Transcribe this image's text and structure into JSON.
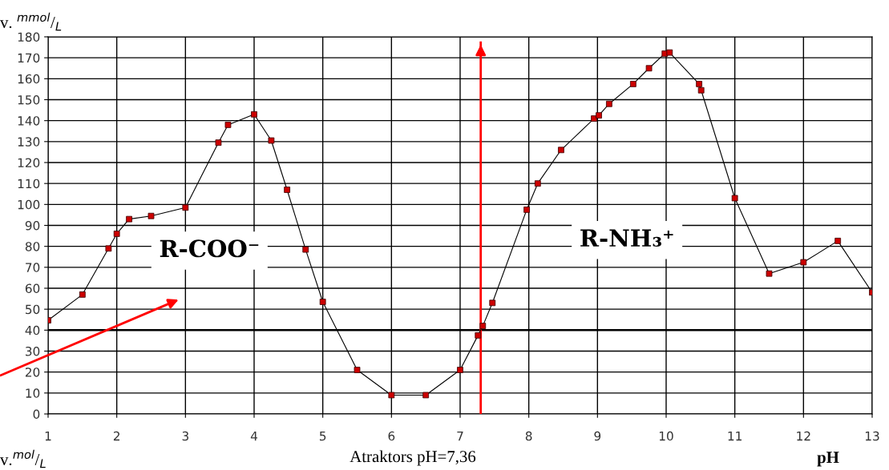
{
  "chart_data": {
    "type": "line",
    "ylabel": "v. $^{mmol}$/$_{L}$",
    "xlabel": "pH",
    "x": [
      1,
      1.5,
      1.88,
      2.0,
      2.18,
      2.5,
      3.0,
      3.48,
      3.62,
      4.0,
      4.25,
      4.48,
      4.75,
      5.0,
      5.5,
      6.0,
      6.5,
      7.0,
      7.26,
      7.33,
      7.47,
      7.97,
      8.13,
      8.47,
      8.95,
      9.02,
      9.17,
      9.52,
      9.75,
      9.98,
      10.05,
      10.48,
      10.51,
      11.0,
      11.5,
      12.0,
      12.5,
      13.0
    ],
    "series": [
      {
        "color": "#cc0000",
        "values": [
          44.7,
          57,
          79,
          86,
          93,
          94.5,
          98.5,
          129.5,
          138,
          143,
          130.5,
          107,
          78.5,
          53.5,
          21,
          9,
          9,
          21,
          37.5,
          42,
          53,
          97.5,
          110,
          126,
          141,
          142.5,
          148,
          157.5,
          165,
          172,
          172.5,
          157.5,
          154.5,
          103,
          67,
          72.4,
          82.6,
          58
        ]
      }
    ],
    "xlim": [
      1,
      13
    ],
    "xticks": [
      1,
      2,
      3,
      4,
      5,
      6,
      7,
      8,
      9,
      10,
      11,
      12,
      13
    ],
    "ylim": [
      0,
      180
    ],
    "yticks": [
      0,
      10,
      20,
      30,
      40,
      50,
      60,
      70,
      80,
      90,
      100,
      110,
      120,
      130,
      140,
      150,
      160,
      170,
      180
    ],
    "grid": true,
    "marker": "square",
    "line_style": "solid",
    "ref_lines": [
      {
        "axis": "y",
        "value": 40,
        "color": "#000000"
      },
      {
        "axis": "x",
        "value": 7.3,
        "color": "#ff0000"
      }
    ],
    "annotations": [
      "R-COO⁻",
      "R-NH₃⁺",
      "Atraktors pH=7,36",
      "v.$^{mol}$/$_{L}$"
    ]
  }
}
